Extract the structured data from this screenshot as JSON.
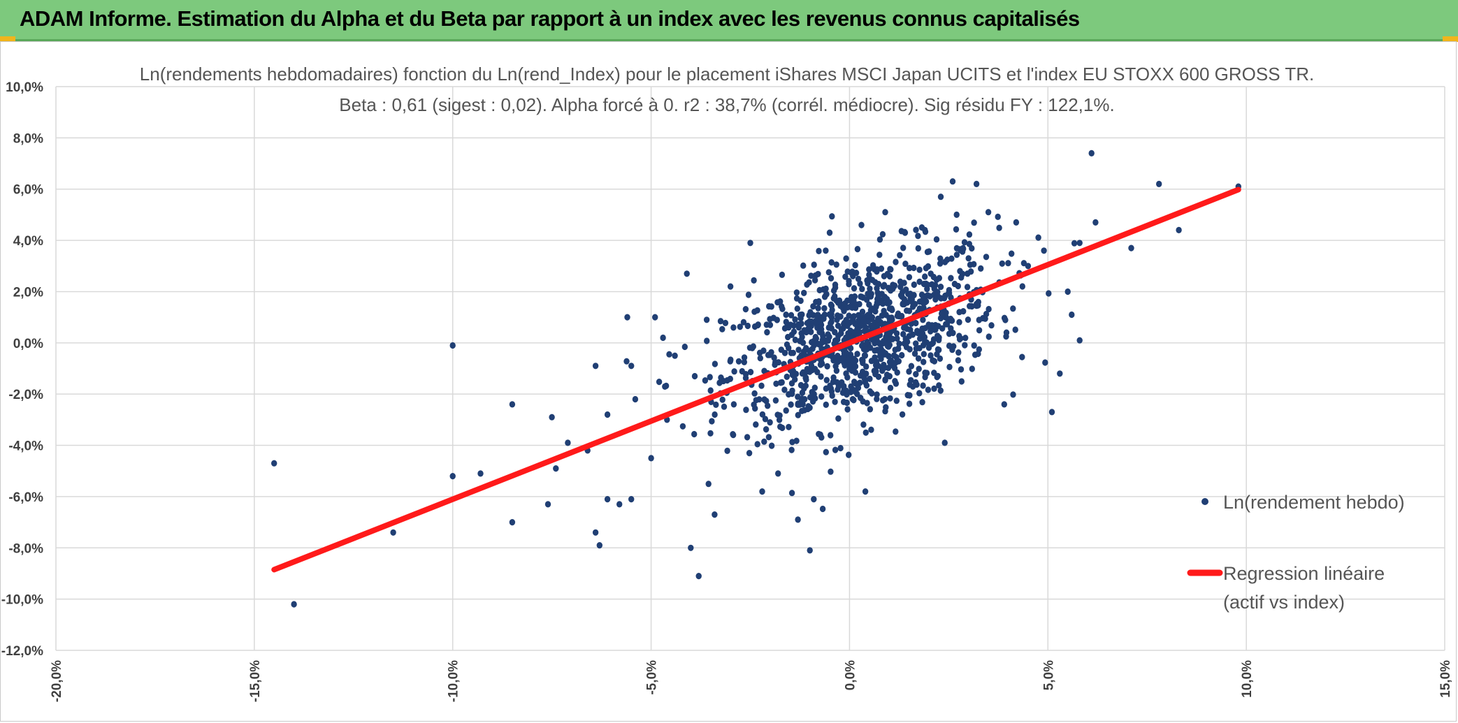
{
  "header": {
    "title": "ADAM Informe. Estimation du Alpha et du Beta par rapport à un index avec les revenus connus capitalisés",
    "colors": {
      "banner": "#7dc97d",
      "corner_accent": "#f1b51c"
    }
  },
  "chart_data": {
    "type": "scatter",
    "title": "Ln(rendements hebdomadaires) fonction du Ln(rend_Index) pour le placement iShares MSCI Japan UCITS  et l'index EU STOXX 600 GROSS TR.",
    "subtitle": "Beta : 0,61 (sigest : 0,02). Alpha forcé à 0. r2 : 38,7% (corrél. médiocre). Sig résidu FY : 122,1%.",
    "xlabel": "",
    "ylabel": "",
    "xlim": [
      -20,
      15
    ],
    "ylim": [
      -12,
      10
    ],
    "x_ticks": [
      "-20,0%",
      "-15,0%",
      "-10,0%",
      "-5,0%",
      "0,0%",
      "5,0%",
      "10,0%",
      "15,0%"
    ],
    "y_ticks": [
      "10,0%",
      "8,0%",
      "6,0%",
      "4,0%",
      "2,0%",
      "0,0%",
      "-2,0%",
      "-4,0%",
      "-6,0%",
      "-8,0%",
      "-10,0%",
      "-12,0%"
    ],
    "grid": true,
    "legend_position": "right",
    "series": [
      {
        "name": "Ln(rendement hebdo)",
        "kind": "scatter",
        "color": "#203f74",
        "points": [
          [
            -14.5,
            -4.7
          ],
          [
            -14.0,
            -10.2
          ],
          [
            -11.5,
            -7.4
          ],
          [
            -10.0,
            -0.1
          ],
          [
            -10.0,
            -5.2
          ],
          [
            -9.3,
            -5.1
          ],
          [
            -8.5,
            -7.0
          ],
          [
            -8.5,
            -2.4
          ],
          [
            -7.6,
            -6.3
          ],
          [
            -7.5,
            -2.9
          ],
          [
            -7.4,
            -4.9
          ],
          [
            -7.1,
            -3.9
          ],
          [
            -6.6,
            -4.2
          ],
          [
            -6.4,
            -0.9
          ],
          [
            -6.4,
            -7.4
          ],
          [
            -6.3,
            -7.9
          ],
          [
            -6.1,
            -6.1
          ],
          [
            -6.1,
            -2.8
          ],
          [
            -5.8,
            -6.3
          ],
          [
            -5.6,
            1.0
          ],
          [
            -5.5,
            -0.9
          ],
          [
            -5.5,
            -6.1
          ],
          [
            -5.4,
            -2.2
          ],
          [
            -5.0,
            -4.5
          ],
          [
            -4.9,
            1.0
          ],
          [
            -4.7,
            0.2
          ],
          [
            -4.6,
            -3.0
          ],
          [
            -4.4,
            -0.5
          ],
          [
            -4.1,
            2.7
          ],
          [
            -4.0,
            -8.0
          ],
          [
            -3.9,
            -1.3
          ],
          [
            -3.8,
            -9.1
          ],
          [
            -3.6,
            0.9
          ],
          [
            -3.4,
            -6.7
          ],
          [
            -3.0,
            2.2
          ],
          [
            -2.5,
            3.9
          ],
          [
            -2.2,
            -5.8
          ],
          [
            -2.0,
            0.7
          ],
          [
            -1.8,
            -5.1
          ],
          [
            -1.6,
            1.1
          ],
          [
            -1.3,
            -6.9
          ],
          [
            -1.0,
            -8.1
          ],
          [
            -0.9,
            -6.1
          ],
          [
            -0.6,
            3.6
          ],
          [
            -0.5,
            4.3
          ],
          [
            0.3,
            4.6
          ],
          [
            0.4,
            -5.8
          ],
          [
            0.9,
            5.1
          ],
          [
            1.4,
            4.3
          ],
          [
            1.9,
            4.4
          ],
          [
            2.3,
            5.7
          ],
          [
            2.6,
            6.3
          ],
          [
            2.7,
            5.0
          ],
          [
            3.0,
            3.3
          ],
          [
            3.2,
            6.2
          ],
          [
            3.5,
            5.1
          ],
          [
            2.4,
            -3.9
          ],
          [
            3.9,
            -2.4
          ],
          [
            4.2,
            4.7
          ],
          [
            4.5,
            3.0
          ],
          [
            4.9,
            3.6
          ],
          [
            5.1,
            -2.7
          ],
          [
            5.3,
            -1.2
          ],
          [
            5.5,
            2.0
          ],
          [
            5.6,
            1.1
          ],
          [
            5.8,
            3.9
          ],
          [
            5.8,
            0.1
          ],
          [
            6.1,
            7.4
          ],
          [
            6.2,
            4.7
          ],
          [
            7.1,
            3.7
          ],
          [
            7.8,
            6.2
          ],
          [
            8.3,
            4.4
          ],
          [
            9.8,
            6.1
          ]
        ],
        "cluster": {
          "center": [
            0.3,
            0.2
          ],
          "spread": [
            1.7,
            1.55
          ],
          "count": 1050,
          "beta": 0.61
        }
      },
      {
        "name": "Regression linéaire (actif vs index)",
        "legend_lines": [
          "Regression linéaire",
          "(actif vs index)"
        ],
        "kind": "line",
        "color": "#ff1a1a",
        "x": [
          -14.5,
          9.8
        ],
        "y": [
          -8.85,
          5.98
        ]
      }
    ]
  }
}
